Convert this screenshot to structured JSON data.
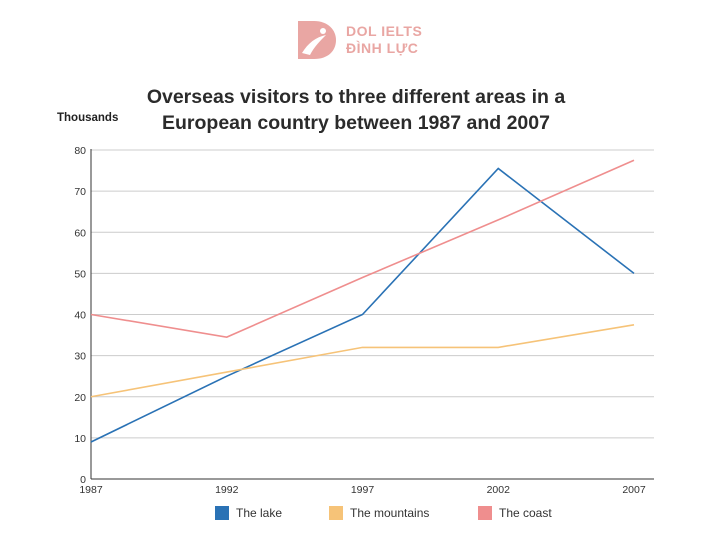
{
  "brand": {
    "line1": "DOL IELTS",
    "line2": "ĐÌNH LỰC",
    "color": "#e9a6a3"
  },
  "chart_data": {
    "type": "line",
    "title_line1": "Overseas visitors to three different areas in a",
    "title_line2": "European country between 1987 and 2007",
    "ylabel": "Thousands",
    "xlabel": "",
    "categories": [
      "1987",
      "1992",
      "1997",
      "2002",
      "2007"
    ],
    "ylim": [
      0,
      80
    ],
    "yticks": [
      0,
      10,
      20,
      30,
      40,
      50,
      60,
      70,
      80
    ],
    "grid": true,
    "legend_position": "bottom",
    "series": [
      {
        "name": "The lake",
        "color": "#2a72b5",
        "values": [
          9,
          25,
          40,
          75.5,
          50
        ]
      },
      {
        "name": "The mountains",
        "color": "#f6c378",
        "values": [
          20,
          26,
          32,
          32,
          37.5
        ]
      },
      {
        "name": "The coast",
        "color": "#ef8e8e",
        "values": [
          40,
          34.5,
          49,
          63,
          77.5
        ]
      }
    ]
  }
}
